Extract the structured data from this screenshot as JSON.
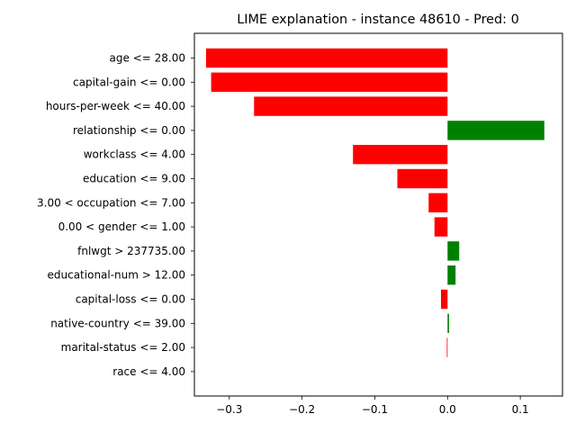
{
  "chart_data": {
    "type": "bar",
    "orientation": "horizontal",
    "title": "LIME explanation - instance 48610 - Pred: 0",
    "xlabel": "",
    "ylabel": "",
    "xlim": [
      -0.348,
      0.158
    ],
    "xticks": [
      -0.3,
      -0.2,
      -0.1,
      0.0,
      0.1
    ],
    "xtick_labels": [
      "−0.3",
      "−0.2",
      "−0.1",
      "0.0",
      "0.1"
    ],
    "grid": false,
    "colors": {
      "positive": "#008000",
      "negative": "#ff0000"
    },
    "categories": [
      "age <= 28.00",
      "capital-gain <= 0.00",
      "hours-per-week <= 40.00",
      "relationship <= 0.00",
      "workclass <= 4.00",
      "education <= 9.00",
      "3.00 < occupation <= 7.00",
      "0.00 < gender <= 1.00",
      "fnlwgt > 237735.00",
      "educational-num > 12.00",
      "capital-loss <= 0.00",
      "native-country <= 39.00",
      "marital-status <= 2.00",
      "race <= 4.00"
    ],
    "values": [
      -0.332,
      -0.325,
      -0.266,
      0.133,
      -0.13,
      -0.069,
      -0.026,
      -0.018,
      0.016,
      0.011,
      -0.009,
      0.002,
      -0.001,
      0.0
    ]
  }
}
